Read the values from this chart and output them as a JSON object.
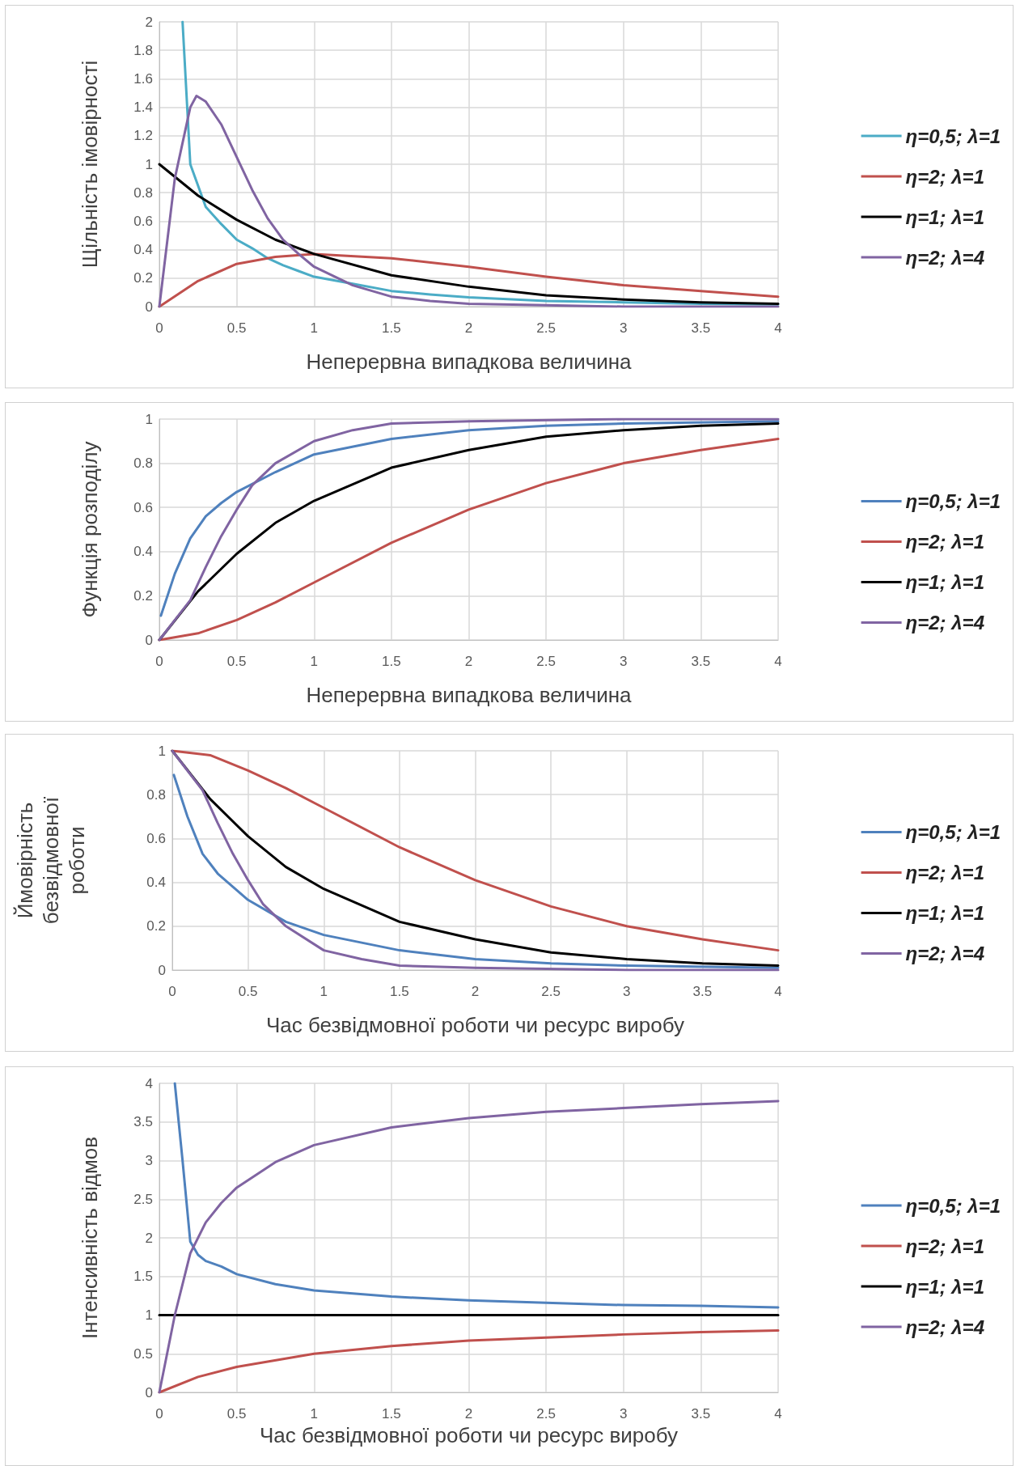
{
  "chart_data": [
    {
      "type": "line",
      "xlabel": "Неперервна випадкова величина",
      "ylabel": "Щільність імовірності",
      "xlim": [
        0,
        4
      ],
      "xticks": [
        0,
        0.5,
        1,
        1.5,
        2,
        2.5,
        3,
        3.5,
        4
      ],
      "ylim": [
        0,
        2
      ],
      "yticks": [
        0,
        0.2,
        0.4,
        0.6,
        0.8,
        1,
        1.2,
        1.4,
        1.6,
        1.8,
        2
      ],
      "grid": true,
      "legend": "right",
      "marker": "none",
      "line_style": "solid",
      "series": [
        {
          "name": "η=0,5; λ=1",
          "color": "#4bacc6",
          "x": [
            0.15,
            0.2,
            0.3,
            0.4,
            0.5,
            0.6,
            0.7,
            0.8,
            0.9,
            1,
            1.25,
            1.5,
            1.75,
            2,
            2.5,
            3,
            3.5,
            4
          ],
          "values": [
            2,
            1.0,
            0.7,
            0.58,
            0.47,
            0.41,
            0.34,
            0.29,
            0.25,
            0.21,
            0.16,
            0.11,
            0.085,
            0.065,
            0.04,
            0.03,
            0.02,
            0.015
          ]
        },
        {
          "name": "η=2; λ=1",
          "color": "#c0504d",
          "x": [
            0,
            0.25,
            0.5,
            0.75,
            1,
            1.5,
            2,
            2.5,
            3,
            3.5,
            4
          ],
          "values": [
            0,
            0.18,
            0.3,
            0.35,
            0.37,
            0.34,
            0.28,
            0.21,
            0.15,
            0.11,
            0.07
          ]
        },
        {
          "name": "η=1; λ=1",
          "color": "#000000",
          "x": [
            0,
            0.25,
            0.5,
            0.75,
            1,
            1.5,
            2,
            2.5,
            3,
            3.5,
            4
          ],
          "values": [
            1,
            0.78,
            0.61,
            0.47,
            0.37,
            0.22,
            0.14,
            0.08,
            0.05,
            0.03,
            0.02
          ]
        },
        {
          "name": "η=2; λ=4",
          "color": "#8064a2",
          "x": [
            0,
            0.1,
            0.2,
            0.24,
            0.3,
            0.4,
            0.5,
            0.6,
            0.7,
            0.8,
            0.9,
            1,
            1.25,
            1.5,
            1.75,
            2,
            2.5,
            3,
            4
          ],
          "values": [
            0,
            0.9,
            1.4,
            1.48,
            1.44,
            1.28,
            1.05,
            0.82,
            0.62,
            0.47,
            0.37,
            0.28,
            0.15,
            0.07,
            0.04,
            0.02,
            0.01,
            0,
            0
          ]
        }
      ]
    },
    {
      "type": "line",
      "xlabel": "Неперервна випадкова величина",
      "ylabel": "Функція розподілу",
      "xlim": [
        0,
        4
      ],
      "xticks": [
        0,
        0.5,
        1,
        1.5,
        2,
        2.5,
        3,
        3.5,
        4
      ],
      "ylim": [
        0,
        1
      ],
      "yticks": [
        0,
        0.2,
        0.4,
        0.6,
        0.8,
        1
      ],
      "grid": true,
      "legend": "right",
      "marker": "none",
      "line_style": "solid",
      "series": [
        {
          "name": "η=0,5; λ=1",
          "color": "#4f81bd",
          "x": [
            0.01,
            0.1,
            0.2,
            0.3,
            0.4,
            0.5,
            0.75,
            1,
            1.5,
            2,
            2.5,
            3,
            4
          ],
          "values": [
            0.11,
            0.3,
            0.46,
            0.56,
            0.62,
            0.67,
            0.76,
            0.84,
            0.91,
            0.95,
            0.97,
            0.98,
            0.99
          ]
        },
        {
          "name": "η=2; λ=1",
          "color": "#c0504d",
          "x": [
            0,
            0.25,
            0.5,
            0.75,
            1,
            1.5,
            2,
            2.5,
            3,
            3.5,
            4
          ],
          "values": [
            0,
            0.03,
            0.09,
            0.17,
            0.26,
            0.44,
            0.59,
            0.71,
            0.8,
            0.86,
            0.91
          ]
        },
        {
          "name": "η=1; λ=1",
          "color": "#000000",
          "x": [
            0,
            0.25,
            0.5,
            0.75,
            1,
            1.5,
            2,
            2.5,
            3,
            3.5,
            4
          ],
          "values": [
            0,
            0.22,
            0.39,
            0.53,
            0.63,
            0.78,
            0.86,
            0.92,
            0.95,
            0.97,
            0.98
          ]
        },
        {
          "name": "η=2; λ=4",
          "color": "#8064a2",
          "x": [
            0,
            0.2,
            0.3,
            0.4,
            0.5,
            0.6,
            0.75,
            1,
            1.25,
            1.5,
            2,
            3,
            4
          ],
          "values": [
            0,
            0.18,
            0.33,
            0.47,
            0.59,
            0.7,
            0.8,
            0.9,
            0.95,
            0.98,
            0.99,
            1,
            1
          ]
        }
      ]
    },
    {
      "type": "line",
      "xlabel": "Час безвідмовної роботи чи ресурс виробу",
      "ylabel": "Ймовірність безвідмовної роботи",
      "xlim": [
        0,
        4
      ],
      "xticks": [
        0,
        0.5,
        1,
        1.5,
        2,
        2.5,
        3,
        3.5,
        4
      ],
      "ylim": [
        0,
        1
      ],
      "yticks": [
        0,
        0.2,
        0.4,
        0.6,
        0.8,
        1
      ],
      "grid": true,
      "legend": "right",
      "marker": "none",
      "line_style": "solid",
      "series": [
        {
          "name": "η=0,5; λ=1",
          "color": "#4f81bd",
          "x": [
            0.01,
            0.1,
            0.2,
            0.3,
            0.4,
            0.5,
            0.75,
            1,
            1.5,
            2,
            2.5,
            3,
            4
          ],
          "values": [
            0.89,
            0.7,
            0.53,
            0.44,
            0.38,
            0.32,
            0.22,
            0.16,
            0.09,
            0.05,
            0.03,
            0.02,
            0.01
          ]
        },
        {
          "name": "η=2; λ=1",
          "color": "#c0504d",
          "x": [
            0,
            0.25,
            0.5,
            0.75,
            1,
            1.5,
            2,
            2.5,
            3,
            3.5,
            4
          ],
          "values": [
            1,
            0.98,
            0.91,
            0.83,
            0.74,
            0.56,
            0.41,
            0.29,
            0.2,
            0.14,
            0.09
          ]
        },
        {
          "name": "η=1; λ=1",
          "color": "#000000",
          "x": [
            0,
            0.25,
            0.5,
            0.75,
            1,
            1.5,
            2,
            2.5,
            3,
            3.5,
            4
          ],
          "values": [
            1,
            0.78,
            0.61,
            0.47,
            0.37,
            0.22,
            0.14,
            0.08,
            0.05,
            0.03,
            0.02
          ]
        },
        {
          "name": "η=2; λ=4",
          "color": "#8064a2",
          "x": [
            0,
            0.2,
            0.3,
            0.4,
            0.5,
            0.6,
            0.75,
            1,
            1.25,
            1.5,
            2,
            3,
            4
          ],
          "values": [
            1,
            0.82,
            0.67,
            0.53,
            0.41,
            0.3,
            0.2,
            0.09,
            0.05,
            0.02,
            0.01,
            0,
            0
          ]
        }
      ]
    },
    {
      "type": "line",
      "xlabel": "Час безвідмовної роботи чи ресурс виробу",
      "ylabel": "Інтенсивність відмов",
      "xlim": [
        0,
        4
      ],
      "xticks": [
        0,
        0.5,
        1,
        1.5,
        2,
        2.5,
        3,
        3.5,
        4
      ],
      "ylim": [
        0,
        4
      ],
      "yticks": [
        0,
        0.5,
        1,
        1.5,
        2,
        2.5,
        3,
        3.5,
        4
      ],
      "grid": true,
      "legend": "right",
      "marker": "none",
      "line_style": "solid",
      "series": [
        {
          "name": "η=0,5; λ=1",
          "color": "#4f81bd",
          "x": [
            0.1,
            0.15,
            0.2,
            0.25,
            0.3,
            0.4,
            0.5,
            0.75,
            1,
            1.5,
            2,
            2.5,
            3,
            3.5,
            4
          ],
          "values": [
            4,
            3,
            1.95,
            1.78,
            1.7,
            1.63,
            1.53,
            1.4,
            1.32,
            1.24,
            1.19,
            1.16,
            1.13,
            1.12,
            1.1
          ]
        },
        {
          "name": "η=2; λ=1",
          "color": "#c0504d",
          "x": [
            0,
            0.25,
            0.5,
            1,
            1.5,
            2,
            2.5,
            3,
            3.5,
            4
          ],
          "values": [
            0,
            0.2,
            0.33,
            0.5,
            0.6,
            0.67,
            0.71,
            0.75,
            0.78,
            0.8
          ]
        },
        {
          "name": "η=1; λ=1",
          "color": "#000000",
          "x": [
            0,
            4
          ],
          "values": [
            1,
            1
          ]
        },
        {
          "name": "η=2; λ=4",
          "color": "#8064a2",
          "x": [
            0,
            0.1,
            0.2,
            0.3,
            0.4,
            0.5,
            0.75,
            1,
            1.5,
            2,
            2.5,
            3,
            3.5,
            4
          ],
          "values": [
            0,
            1,
            1.8,
            2.2,
            2.45,
            2.65,
            2.98,
            3.2,
            3.43,
            3.55,
            3.63,
            3.68,
            3.73,
            3.77
          ]
        }
      ]
    }
  ]
}
